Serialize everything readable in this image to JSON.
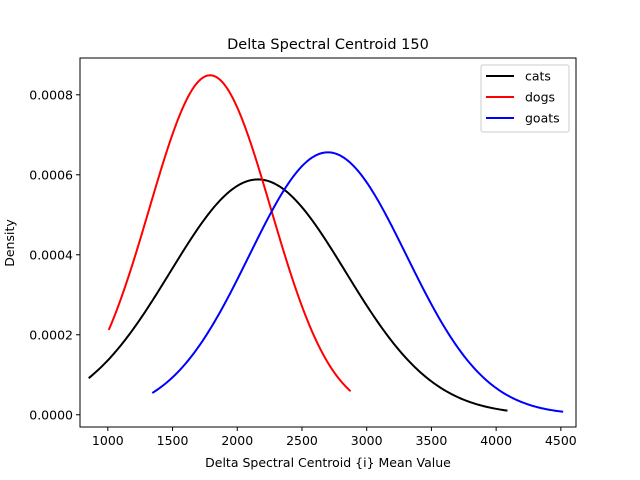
{
  "chart_data": {
    "type": "line",
    "title": "Delta Spectral Centroid 150",
    "xlabel": "Delta Spectral Centroid {i} Mean Value",
    "ylabel": "Density",
    "xlim": [
      785,
      4617
    ],
    "ylim": [
      -3.06e-05,
      0.000892
    ],
    "x_ticks": [
      1000,
      1500,
      2000,
      2500,
      3000,
      3500,
      4000,
      4500
    ],
    "x_tick_labels": [
      "1000",
      "1500",
      "2000",
      "2500",
      "3000",
      "3500",
      "4000",
      "4500"
    ],
    "y_ticks": [
      0.0,
      0.0002,
      0.0004,
      0.0006,
      0.0008
    ],
    "y_tick_labels": [
      "0.0000",
      "0.0002",
      "0.0004",
      "0.0006",
      "0.0008"
    ],
    "grid": false,
    "legend_position": "top-right",
    "series": [
      {
        "name": "cats",
        "color": "#000000",
        "distribution": "normal",
        "mean": 2160,
        "sd": 678,
        "x_range": [
          858,
          4080
        ]
      },
      {
        "name": "dogs",
        "color": "#ff0000",
        "distribution": "normal",
        "mean": 1790,
        "sd": 470,
        "x_range": [
          1010,
          2870
        ]
      },
      {
        "name": "goats",
        "color": "#0000ff",
        "distribution": "normal",
        "mean": 2700,
        "sd": 608,
        "x_range": [
          1350,
          4510
        ]
      }
    ]
  }
}
